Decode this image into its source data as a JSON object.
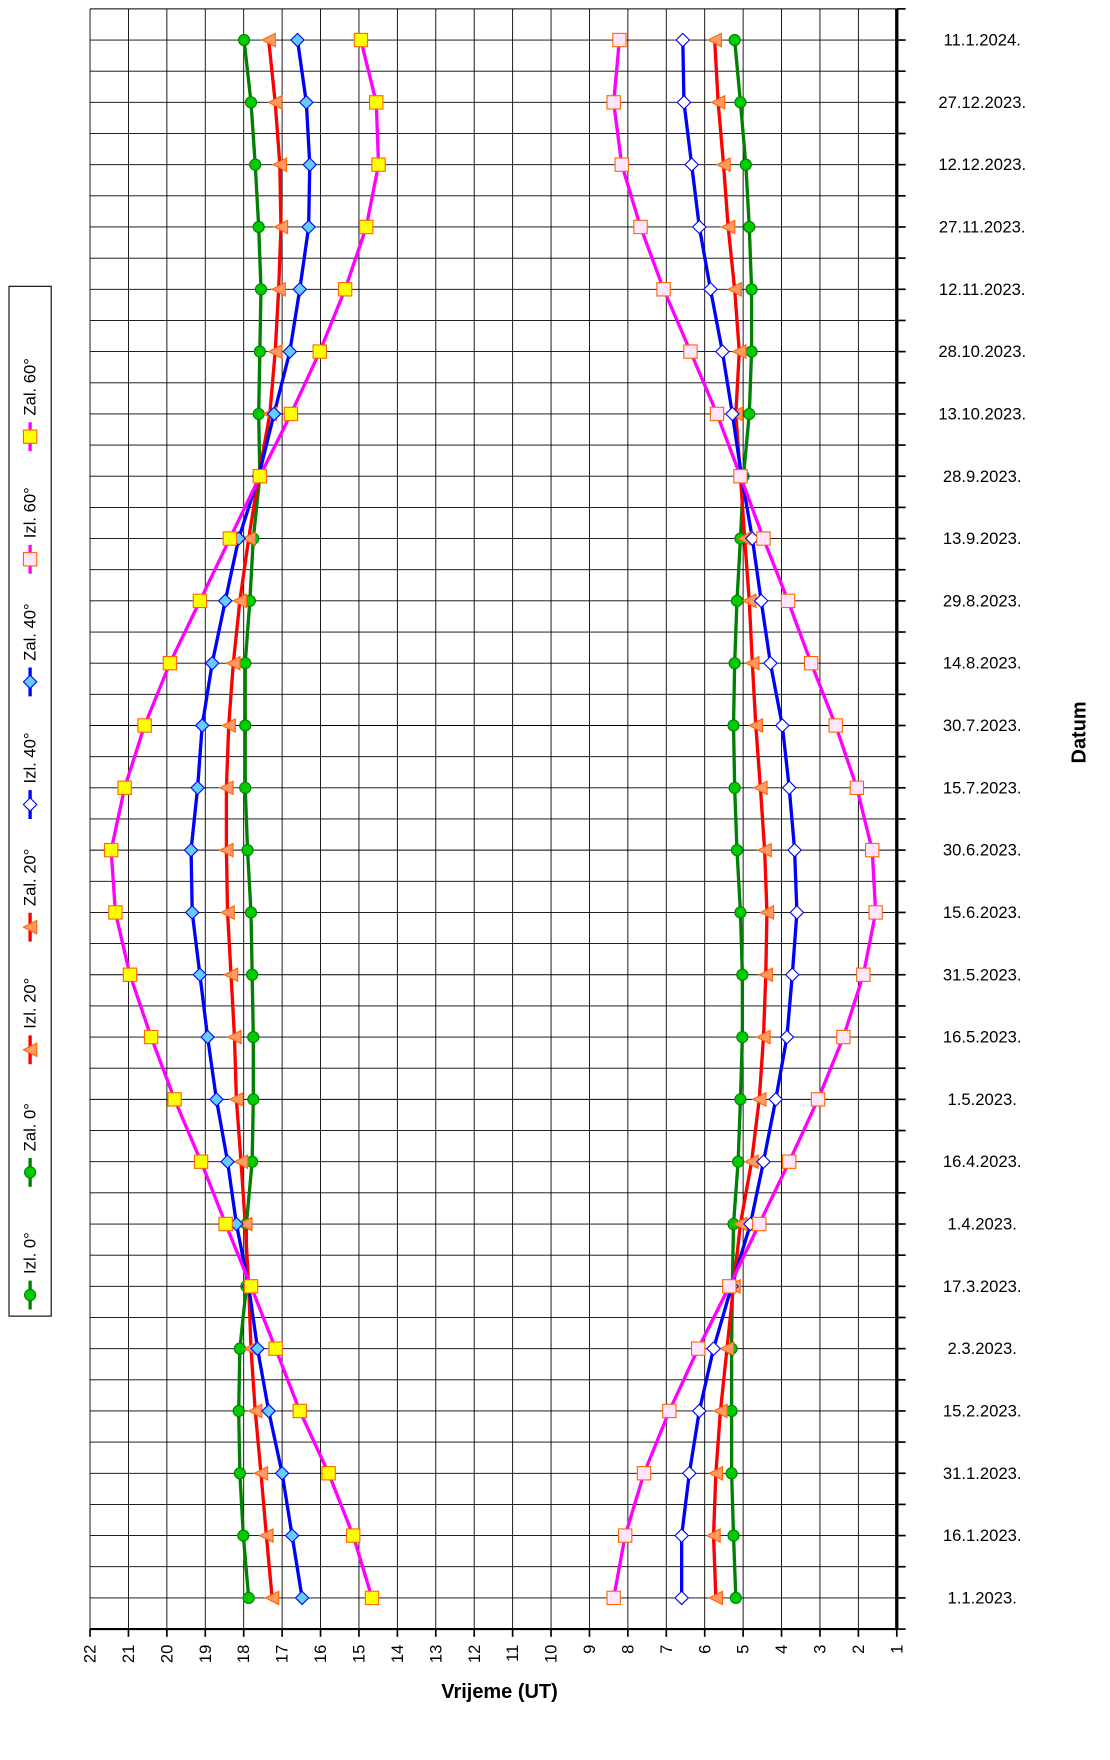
{
  "chart_data": {
    "type": "line",
    "orientation": "horizontal",
    "x_label": "Vrijeme (UT)",
    "y_label": "Datum",
    "categories": [
      "1.1.2023.",
      "16.1.2023.",
      "31.1.2023.",
      "15.2.2023.",
      "2.3.2023.",
      "17.3.2023.",
      "1.4.2023.",
      "16.4.2023.",
      "1.5.2023.",
      "16.5.2023.",
      "31.5.2023.",
      "15.6.2023.",
      "30.6.2023.",
      "15.7.2023.",
      "30.7.2023.",
      "14.8.2023.",
      "29.8.2023.",
      "13.9.2023.",
      "28.9.2023.",
      "13.10.2023.",
      "28.10.2023.",
      "12.11.2023.",
      "27.11.2023.",
      "12.12.2023.",
      "27.12.2023.",
      "11.1.2024."
    ],
    "xlim": [
      22,
      1
    ],
    "xticks": [
      22,
      21,
      20,
      19,
      18,
      17,
      16,
      15,
      14,
      13,
      12,
      11,
      10,
      9,
      8,
      7,
      6,
      5,
      4,
      3,
      2,
      1
    ],
    "grid": true,
    "series": [
      {
        "name": "Izl. 0°",
        "color": "#008000",
        "marker": "circle",
        "marker_color": "#00cc00",
        "values": [
          5.19,
          5.25,
          5.3,
          5.3,
          5.3,
          5.28,
          5.25,
          5.13,
          5.07,
          5.02,
          5.02,
          5.07,
          5.16,
          5.22,
          5.25,
          5.22,
          5.16,
          5.07,
          4.99,
          4.84,
          4.78,
          4.78,
          4.84,
          4.93,
          5.07,
          5.22
        ]
      },
      {
        "name": "Zal. 0°",
        "color": "#008000",
        "marker": "circle",
        "marker_color": "#00cc00",
        "values": [
          17.87,
          18.01,
          18.1,
          18.13,
          18.1,
          17.93,
          17.93,
          17.78,
          17.75,
          17.75,
          17.78,
          17.81,
          17.9,
          17.96,
          17.96,
          17.96,
          17.84,
          17.75,
          17.58,
          17.61,
          17.58,
          17.55,
          17.61,
          17.7,
          17.81,
          17.99
        ]
      },
      {
        "name": "Izl. 20°",
        "color": "#ff0000",
        "marker": "triangle",
        "marker_color": "#ff9966",
        "values": [
          5.71,
          5.77,
          5.71,
          5.59,
          5.42,
          5.25,
          5.07,
          4.78,
          4.58,
          4.47,
          4.41,
          4.38,
          4.44,
          4.55,
          4.67,
          4.76,
          4.84,
          4.96,
          5.07,
          5.19,
          5.1,
          5.22,
          5.39,
          5.51,
          5.65,
          5.74
        ]
      },
      {
        "name": "Zal. 20°",
        "color": "#ff0000",
        "marker": "triangle",
        "marker_color": "#ff9966",
        "values": [
          17.26,
          17.41,
          17.55,
          17.7,
          17.81,
          17.87,
          17.96,
          18.07,
          18.19,
          18.24,
          18.33,
          18.42,
          18.45,
          18.45,
          18.39,
          18.27,
          18.1,
          17.87,
          17.61,
          17.32,
          17.18,
          17.09,
          17.03,
          17.06,
          17.18,
          17.35
        ]
      },
      {
        "name": "Izl. 40°",
        "color": "#0000ff",
        "marker": "diamond",
        "marker_color": "#ffffff",
        "values": [
          6.6,
          6.6,
          6.4,
          6.14,
          5.77,
          5.3,
          4.81,
          4.47,
          4.15,
          3.86,
          3.72,
          3.6,
          3.66,
          3.8,
          3.98,
          4.29,
          4.53,
          4.76,
          5.04,
          5.28,
          5.54,
          5.85,
          6.14,
          6.34,
          6.54,
          6.57
        ]
      },
      {
        "name": "Zal. 40°",
        "color": "#0000ff",
        "marker": "diamond",
        "marker_color": "#66ccff",
        "values": [
          16.48,
          16.74,
          17.0,
          17.35,
          17.64,
          17.87,
          18.19,
          18.42,
          18.71,
          18.94,
          19.14,
          19.34,
          19.37,
          19.2,
          19.08,
          18.82,
          18.48,
          18.13,
          17.61,
          17.21,
          16.8,
          16.54,
          16.31,
          16.28,
          16.37,
          16.6
        ]
      },
      {
        "name": "Izl. 60°",
        "color": "#ff00ff",
        "marker": "square",
        "marker_color": "#ffe6ff",
        "values": [
          8.37,
          8.07,
          7.58,
          6.92,
          6.17,
          5.36,
          4.58,
          3.8,
          3.05,
          2.39,
          1.87,
          1.55,
          1.64,
          2.04,
          2.59,
          3.23,
          3.83,
          4.47,
          5.07,
          5.68,
          6.37,
          7.07,
          7.67,
          8.16,
          8.37,
          8.22
        ]
      },
      {
        "name": "Zal. 60°",
        "color": "#ff00ff",
        "marker": "square",
        "marker_color": "#ffff00",
        "values": [
          14.66,
          15.15,
          15.79,
          16.54,
          17.17,
          17.81,
          18.47,
          19.11,
          19.8,
          20.41,
          20.96,
          21.34,
          21.45,
          21.1,
          20.58,
          19.92,
          19.14,
          18.36,
          17.58,
          16.77,
          16.02,
          15.36,
          14.81,
          14.49,
          14.55,
          14.95
        ]
      }
    ]
  }
}
